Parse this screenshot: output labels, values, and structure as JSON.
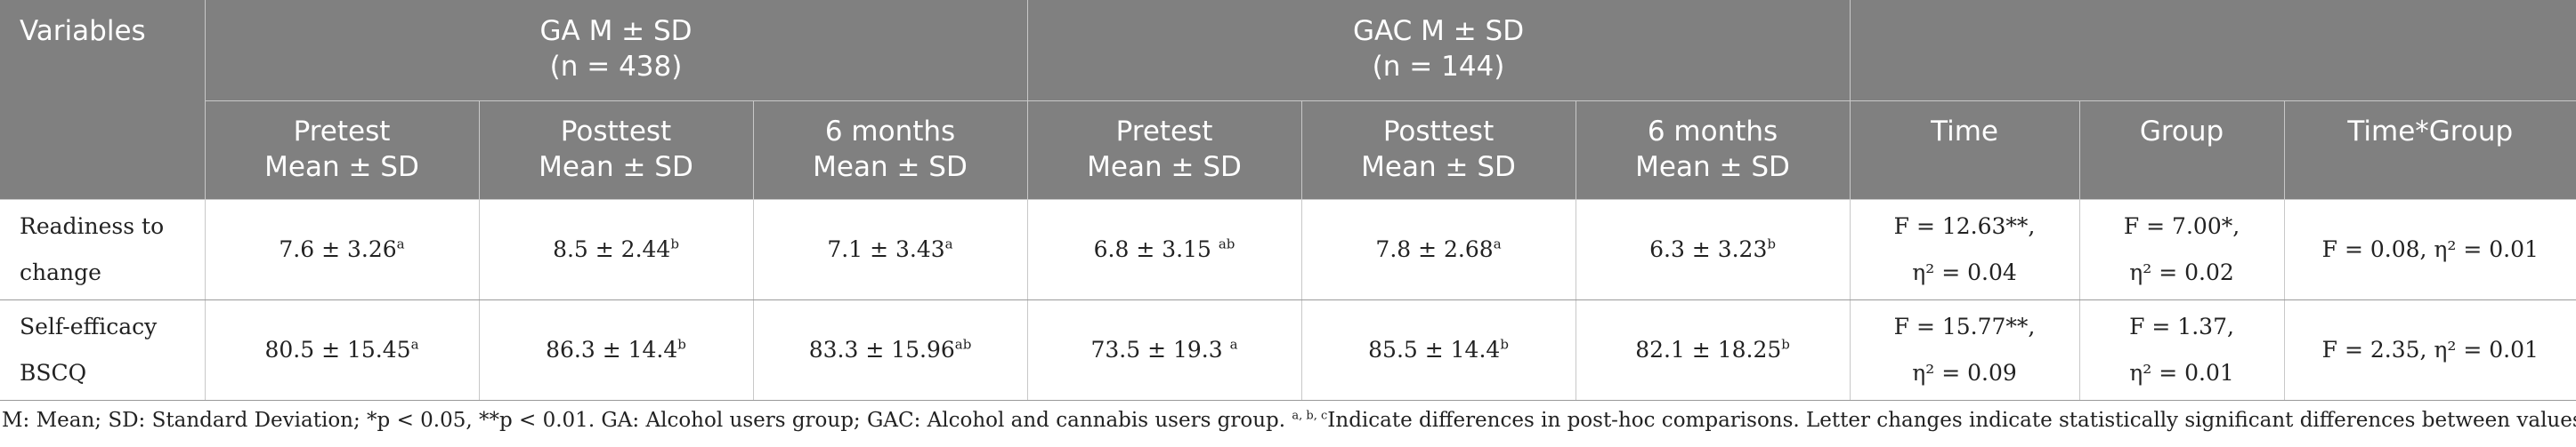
{
  "header": {
    "variables": "Variables",
    "ga_title": "GA M ± SD",
    "ga_n": "(n = 438)",
    "gac_title": "GAC M ± SD",
    "gac_n": "(n = 144)",
    "subcols": [
      {
        "label": "Pretest",
        "sub": "Mean ± SD"
      },
      {
        "label": "Posttest",
        "sub": "Mean ± SD"
      },
      {
        "label": "6 months",
        "sub": "Mean ± SD"
      },
      {
        "label": "Pretest",
        "sub": "Mean ± SD"
      },
      {
        "label": "Posttest",
        "sub": "Mean ± SD"
      },
      {
        "label": "6 months",
        "sub": "Mean ± SD"
      },
      {
        "label": "Time"
      },
      {
        "label": "Group"
      },
      {
        "label": "Time*Group"
      }
    ]
  },
  "rows": [
    {
      "var_line1": "Readiness to",
      "var_line2": "change",
      "cells": [
        {
          "value": "7.6 ± 3.26",
          "sup": "a"
        },
        {
          "value": "8.5 ± 2.44",
          "sup": "b"
        },
        {
          "value": "7.1 ± 3.43",
          "sup": "a"
        },
        {
          "value": "6.8 ± 3.15 ",
          "sup": "ab"
        },
        {
          "value": "7.8 ± 2.68",
          "sup": "a"
        },
        {
          "value": "6.3 ± 3.23",
          "sup": "b"
        }
      ],
      "time_line1": "F = 12.63**,",
      "time_line2": "η² = 0.04",
      "group_line1": "F = 7.00*,",
      "group_line2": "η² = 0.02",
      "interaction": "F = 0.08, η² = 0.01"
    },
    {
      "var_line1": "Self-efficacy",
      "var_line2": "BSCQ",
      "cells": [
        {
          "value": "80.5 ± 15.45",
          "sup": "a"
        },
        {
          "value": "86.3 ± 14.4",
          "sup": "b"
        },
        {
          "value": "83.3 ± 15.96",
          "sup": "ab"
        },
        {
          "value": "73.5 ± 19.3 ",
          "sup": "a"
        },
        {
          "value": "85.5 ± 14.4",
          "sup": "b"
        },
        {
          "value": "82.1 ± 18.25",
          "sup": "b"
        }
      ],
      "time_line1": "F = 15.77**,",
      "time_line2": "η² = 0.09",
      "group_line1": "F = 1.37,",
      "group_line2": "η² = 0.01",
      "interaction": "F = 2.35, η² = 0.01"
    }
  ],
  "footnote": {
    "text": "M: Mean; SD: Standard Deviation; *p < 0.05, **p < 0.01. GA: Alcohol users group; GAC: Alcohol and cannabis users group. ",
    "sup": "a, b, c",
    "text2": "Indicate differences in post-hoc comparisons. Letter changes indicate statistically significant differences between values."
  },
  "colors": {
    "header_bg": "#808080",
    "header_text": "#ffffff",
    "body_text": "#222222"
  }
}
